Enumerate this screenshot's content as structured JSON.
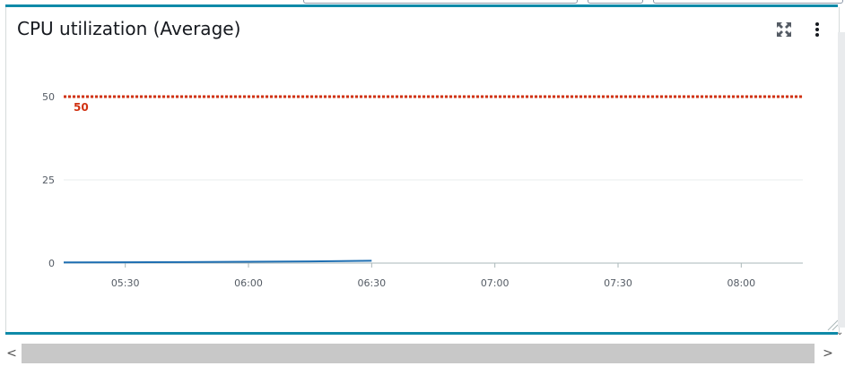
{
  "widget": {
    "title": "CPU utilization (Average)",
    "threshold_label": "50"
  },
  "icons": {
    "expand": "expand-arrows-icon",
    "menu": "vertical-dots-icon",
    "resize": "resize-corner-icon",
    "scroll_left": "chevron-left-icon",
    "scroll_right": "chevron-right-icon"
  },
  "scrollbar": {
    "left_glyph": "<",
    "right_glyph": ">"
  },
  "chart_data": {
    "type": "line",
    "title": "CPU utilization (Average)",
    "ylim": [
      0,
      50
    ],
    "y_ticks": [
      "50",
      "25",
      "0"
    ],
    "x_ticks": [
      "05:30",
      "06:00",
      "06:30",
      "07:00",
      "07:30",
      "08:00"
    ],
    "grid": true,
    "series": [
      {
        "color": "#1f6fb2",
        "points": [
          [
            "05:15",
            0.2
          ],
          [
            "05:45",
            0.3
          ],
          [
            "06:15",
            0.5
          ],
          [
            "06:30",
            0.7
          ]
        ]
      }
    ],
    "threshold": {
      "value": 50,
      "color": "#d13212",
      "label": "50"
    },
    "colors": {
      "axis": "#aab7b8",
      "grid": "#eaeded",
      "series": "#1f6fb2",
      "threshold": "#d13212"
    }
  }
}
